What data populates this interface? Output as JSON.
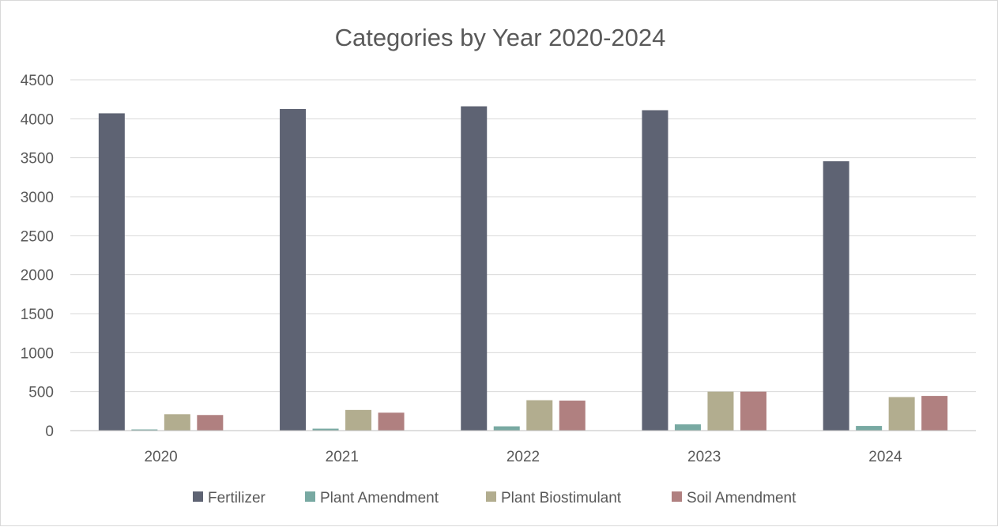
{
  "chart_data": {
    "type": "bar",
    "title": "Categories by Year 2020-2024",
    "categories": [
      "2020",
      "2021",
      "2022",
      "2023",
      "2024"
    ],
    "series": [
      {
        "name": "Fertilizer",
        "color": "#5e6373",
        "values": [
          4070,
          4125,
          4160,
          4110,
          3455
        ]
      },
      {
        "name": "Plant Amendment",
        "color": "#78a9a2",
        "values": [
          15,
          25,
          55,
          80,
          60
        ]
      },
      {
        "name": "Plant Biostimulant",
        "color": "#b2ad8f",
        "values": [
          210,
          265,
          390,
          500,
          430
        ]
      },
      {
        "name": "Soil Amendment",
        "color": "#b08080",
        "values": [
          200,
          230,
          385,
          500,
          445
        ]
      }
    ],
    "ylim": [
      0,
      4500
    ],
    "yticks": [
      0,
      500,
      1000,
      1500,
      2000,
      2500,
      3000,
      3500,
      4000,
      4500
    ],
    "grid": true,
    "legend": "bottom"
  }
}
